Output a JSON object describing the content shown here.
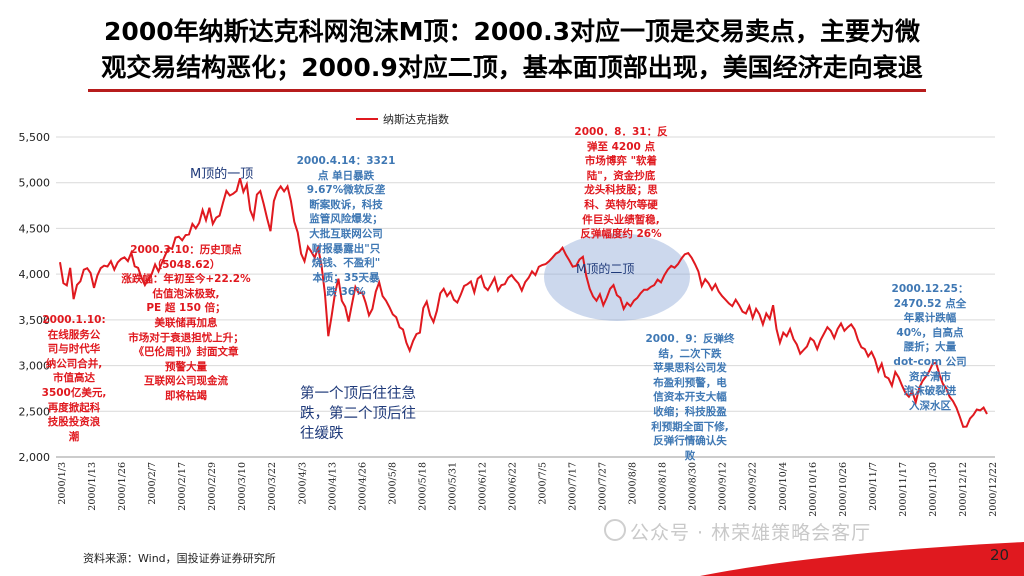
{
  "title": {
    "line1": "2000年纳斯达克科网泡沫M顶：2000.3对应一顶是交易卖点，主要为微",
    "line2": "观交易结构恶化；2000.9对应二顶，基本面顶部出现，美国经济走向衰退"
  },
  "colors": {
    "line": "#e0191f",
    "red_text": "#e0191f",
    "blue_text": "#3f78b4",
    "navy_text": "#1f3a7a",
    "title_underline": "#b71c1c"
  },
  "chart_data": {
    "type": "line",
    "legend": "纳斯达克指数",
    "legend_position": "top-center",
    "grid": "horizontal",
    "ylim": [
      2000,
      5500
    ],
    "yticks": [
      "2,000",
      "2,500",
      "3,000",
      "3,500",
      "4,000",
      "4,500",
      "5,000",
      "5,500"
    ],
    "ytick_values": [
      2000,
      2500,
      3000,
      3500,
      4000,
      4500,
      5000,
      5500
    ],
    "xticks": [
      "2000/1/3",
      "2000/1/13",
      "2000/1/26",
      "2000/2/7",
      "2000/2/17",
      "2000/2/29",
      "2000/3/10",
      "2000/3/22",
      "2000/4/3",
      "2000/4/13",
      "2000/4/26",
      "2000/5/8",
      "2000/5/18",
      "2000/5/31",
      "2000/6/12",
      "2000/6/22",
      "2000/7/5",
      "2000/7/17",
      "2000/7/27",
      "2000/8/8",
      "2000/8/18",
      "2000/8/30",
      "2000/9/12",
      "2000/9/22",
      "2000/10/4",
      "2000/10/16",
      "2000/10/26",
      "2000/11/7",
      "2000/11/17",
      "2000/11/30",
      "2000/12/12",
      "2000/12/22"
    ],
    "values": [
      4131,
      3901,
      3877,
      4069,
      3727,
      3882,
      3922,
      4049,
      4065,
      4013,
      3850,
      3986,
      4065,
      4092,
      4084,
      4142,
      4050,
      4128,
      4166,
      4184,
      4143,
      4235,
      4086,
      4068,
      3960,
      3880,
      3945,
      4000,
      4105,
      4030,
      4125,
      4210,
      4290,
      4276,
      4400,
      4410,
      4370,
      4427,
      4435,
      4550,
      4500,
      4560,
      4700,
      4590,
      4727,
      4550,
      4618,
      4640,
      4780,
      4910,
      4860,
      4880,
      4910,
      5049,
      4900,
      4982,
      4700,
      4610,
      4870,
      4908,
      4767,
      4610,
      4470,
      4800,
      4907,
      4960,
      4905,
      4960,
      4800,
      4573,
      4457,
      4224,
      4140,
      4300,
      4245,
      4180,
      4288,
      4097,
      3790,
      3321,
      3540,
      3790,
      3950,
      3710,
      3643,
      3482,
      3675,
      3860,
      3790,
      3800,
      3690,
      3550,
      3620,
      3810,
      3910,
      3760,
      3710,
      3640,
      3560,
      3529,
      3420,
      3395,
      3250,
      3164,
      3270,
      3345,
      3360,
      3630,
      3700,
      3550,
      3475,
      3600,
      3790,
      3840,
      3760,
      3810,
      3720,
      3690,
      3774,
      3870,
      3890,
      3920,
      3800,
      3950,
      3980,
      3860,
      3825,
      3890,
      3960,
      3820,
      3880,
      3890,
      3960,
      3990,
      3940,
      3900,
      3820,
      3913,
      3960,
      4030,
      3990,
      4080,
      4100,
      4110,
      4140,
      4180,
      4224,
      4244,
      4289,
      4212,
      4150,
      4083,
      4090,
      4160,
      4190,
      3980,
      3840,
      3755,
      3710,
      3780,
      3660,
      3740,
      3840,
      3880,
      3770,
      3740,
      3620,
      3685,
      3650,
      3710,
      3740,
      3790,
      3830,
      3830,
      3860,
      3880,
      3940,
      3910,
      3990,
      4050,
      4090,
      4070,
      4110,
      4170,
      4217,
      4230,
      4180,
      4110,
      4030,
      3870,
      3945,
      3900,
      3830,
      3890,
      3810,
      3760,
      3720,
      3680,
      3650,
      3720,
      3660,
      3590,
      3570,
      3650,
      3520,
      3620,
      3560,
      3450,
      3570,
      3510,
      3660,
      3400,
      3250,
      3360,
      3320,
      3400,
      3290,
      3230,
      3130,
      3170,
      3210,
      3300,
      3270,
      3180,
      3280,
      3350,
      3420,
      3380,
      3300,
      3400,
      3460,
      3380,
      3420,
      3450,
      3395,
      3280,
      3200,
      3180,
      3100,
      3150,
      3070,
      2940,
      3020,
      2880,
      2860,
      2780,
      2930,
      2870,
      2780,
      2700,
      2660,
      2720,
      2597,
      2750,
      2830,
      2880,
      2940,
      3020,
      3030,
      2900,
      2800,
      2750,
      2660,
      2610,
      2540,
      2440,
      2330,
      2332,
      2420,
      2460,
      2520,
      2510,
      2540,
      2470
    ]
  },
  "annotations": {
    "m_top_1": "M顶的一顶",
    "m_top_2": "M顶的二顶",
    "ann_0110": [
      "2000.1.10:",
      "在线服务公",
      "司与时代华",
      "纳公司合并,",
      "市值高达",
      "3500亿美元,",
      "再度掀起科",
      "技股投资浪",
      "潮"
    ],
    "ann_0310": [
      "2000.3.10：历史顶点",
      "（5048.62）",
      "涨跌幅：年初至今+22.2%",
      "估值泡沫极致,",
      "PE 超 150 倍；",
      "美联储再加息",
      "市场对于衰退担忧上升；",
      "《巴伦周刊》封面文章",
      "预警大量",
      "互联网公司现金流",
      "即将枯竭"
    ],
    "ann_0414": [
      "2000.4.14：3321",
      "点 单日暴跌",
      "9.67%微软反垄",
      "断案败诉，科技",
      "监管风险爆发；",
      "大批互联网公司",
      "财报暴露出\"只",
      "烧钱、不盈利\"",
      "本质；35天暴",
      "跌 36%"
    ],
    "ann_0831": [
      "2000．8．31：反",
      "弹至 4200 点",
      "市场博弈 \"软着",
      "陆\"，资金抄底",
      "龙头科技股；思",
      "科、英特尔等硬",
      "件巨头业绩暂稳,",
      "反弹幅度约 26%"
    ],
    "ann_09": [
      "2000．9：反弹终",
      "结，二次下跌",
      "苹果思科公司发",
      "布盈利预警，电",
      "信资本开支大幅",
      "收缩；科技股盈",
      "利预期全面下修,",
      "反弹行情确认失",
      "败"
    ],
    "ann_1225": [
      "2000.12.25：",
      "2470.52 点全",
      "年累计跌幅",
      "40%，自高点",
      "腰折；大量",
      "dot-com 公司",
      "资产清市",
      "泡沫破裂进",
      "入深水区"
    ],
    "note": [
      "第一个顶后往往急",
      "跌，第二个顶后往",
      "往缓跌"
    ]
  },
  "footer": {
    "source": "资料来源：Wind，国投证券证券研究所",
    "page": "20",
    "watermark": "公众号 · 林荣雄策略会客厅"
  }
}
